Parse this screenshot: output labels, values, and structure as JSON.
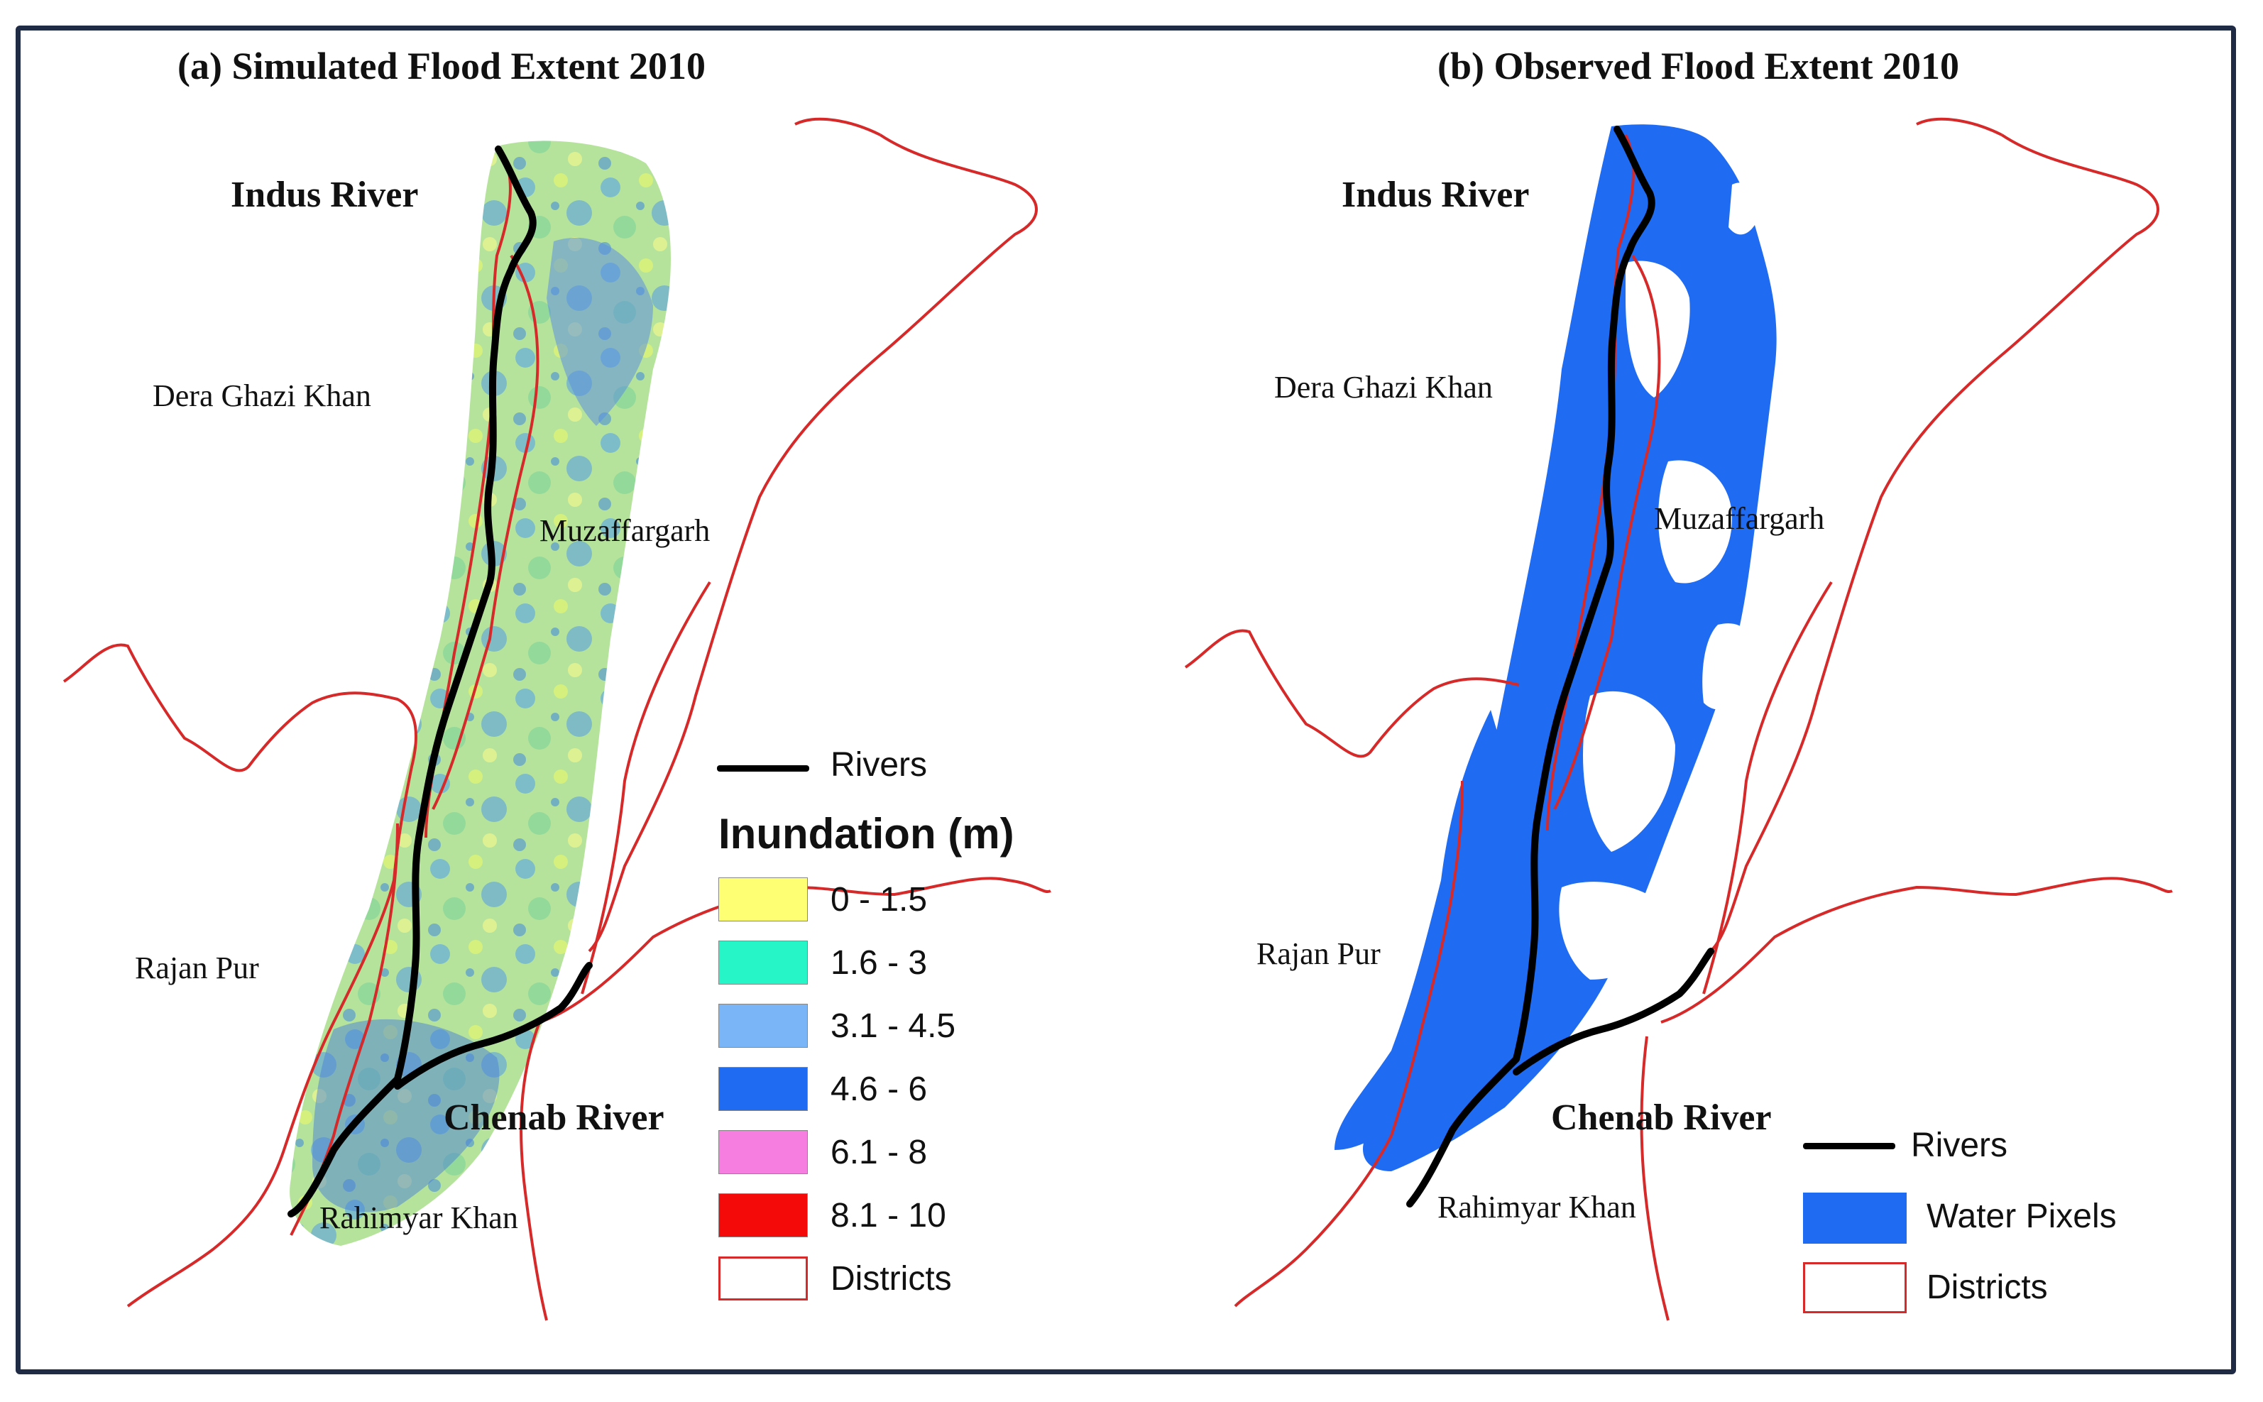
{
  "panels": {
    "a": {
      "title": "(a) Simulated Flood Extent 2010",
      "rivers": {
        "indus": "Indus River",
        "chenab": "Chenab River"
      },
      "districts": {
        "dgk": "Dera Ghazi Khan",
        "muz": "Muzaffargarh",
        "rajan": "Rajan Pur",
        "rahim": "Rahimyar Khan"
      },
      "legend": {
        "rivers_label": "Rivers",
        "title": "Inundation (m)",
        "classes": [
          {
            "label": "0 - 1.5",
            "color": "#ffff73"
          },
          {
            "label": "1.6 - 3",
            "color": "#26f5c8"
          },
          {
            "label": "3.1 - 4.5",
            "color": "#79b5f7"
          },
          {
            "label": "4.6 - 6",
            "color": "#1f6cf2"
          },
          {
            "label": "6.1 - 8",
            "color": "#f57ee0"
          },
          {
            "label": "8.1 - 10",
            "color": "#f50a0a"
          }
        ],
        "districts_label": "Districts"
      }
    },
    "b": {
      "title": "(b) Observed Flood Extent 2010",
      "rivers": {
        "indus": "Indus River",
        "chenab": "Chenab River"
      },
      "districts": {
        "dgk": "Dera Ghazi Khan",
        "muz": "Muzaffargarh",
        "rajan": "Rajan Pur",
        "rahim": "Rahimyar Khan"
      },
      "legend": {
        "rivers_label": "Rivers",
        "water_label": "Water Pixels",
        "water_color": "#1f6cf2",
        "districts_label": "Districts"
      }
    }
  },
  "colors": {
    "frame": "#1f2a44",
    "district_boundary": "#d62a2a",
    "river": "#000000",
    "sim_base": "#b9e6a0"
  }
}
